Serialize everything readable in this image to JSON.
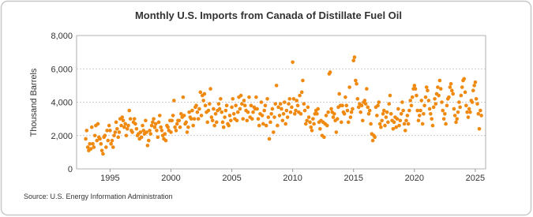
{
  "chart_data": {
    "type": "scatter",
    "title": "Monthly U.S. Imports from Canada of Distillate Fuel Oil",
    "y_label": "Thousand Barrels",
    "source": "Source: U.S. Energy Information Administration",
    "color": "#f0890f",
    "grid": true,
    "xlim": [
      1992.25,
      2025.85
    ],
    "xticks": [
      1995,
      2000,
      2005,
      2010,
      2015,
      2020,
      2025
    ],
    "ylim": [
      0,
      8000
    ],
    "yticks": [
      0,
      {
        "value": 2000,
        "label": "2,000"
      },
      {
        "value": 4000,
        "label": "4,000"
      },
      {
        "value": 6000,
        "label": "6,000"
      },
      {
        "value": 8000,
        "label": "8,000"
      }
    ],
    "x": [
      1993.0,
      1993.08,
      1993.17,
      1993.25,
      1993.33,
      1993.42,
      1993.5,
      1993.58,
      1993.67,
      1993.75,
      1993.83,
      1993.92,
      1994.0,
      1994.08,
      1994.17,
      1994.25,
      1994.33,
      1994.42,
      1994.5,
      1994.58,
      1994.67,
      1994.75,
      1994.83,
      1994.92,
      1995.0,
      1995.08,
      1995.17,
      1995.25,
      1995.33,
      1995.42,
      1995.5,
      1995.58,
      1995.67,
      1995.75,
      1995.83,
      1995.92,
      1996.0,
      1996.08,
      1996.17,
      1996.25,
      1996.33,
      1996.42,
      1996.5,
      1996.58,
      1996.67,
      1996.75,
      1996.83,
      1996.92,
      1997.0,
      1997.08,
      1997.17,
      1997.25,
      1997.33,
      1997.42,
      1997.5,
      1997.58,
      1997.67,
      1997.75,
      1997.83,
      1997.92,
      1998.0,
      1998.08,
      1998.17,
      1998.25,
      1998.33,
      1998.42,
      1998.5,
      1998.58,
      1998.67,
      1998.75,
      1998.83,
      1998.92,
      1999.0,
      1999.08,
      1999.17,
      1999.25,
      1999.33,
      1999.42,
      1999.5,
      1999.58,
      1999.67,
      1999.75,
      1999.83,
      1999.92,
      2000.0,
      2000.08,
      2000.17,
      2000.25,
      2000.33,
      2000.42,
      2000.5,
      2000.58,
      2000.67,
      2000.75,
      2000.83,
      2000.92,
      2001.0,
      2001.08,
      2001.17,
      2001.25,
      2001.33,
      2001.42,
      2001.5,
      2001.58,
      2001.67,
      2001.75,
      2001.83,
      2001.92,
      2002.0,
      2002.08,
      2002.17,
      2002.25,
      2002.33,
      2002.42,
      2002.5,
      2002.58,
      2002.67,
      2002.75,
      2002.83,
      2002.92,
      2003.0,
      2003.08,
      2003.17,
      2003.25,
      2003.33,
      2003.42,
      2003.5,
      2003.58,
      2003.67,
      2003.75,
      2003.83,
      2003.92,
      2004.0,
      2004.08,
      2004.17,
      2004.25,
      2004.33,
      2004.42,
      2004.5,
      2004.58,
      2004.67,
      2004.75,
      2004.83,
      2004.92,
      2005.0,
      2005.08,
      2005.17,
      2005.25,
      2005.33,
      2005.42,
      2005.5,
      2005.58,
      2005.67,
      2005.75,
      2005.83,
      2005.92,
      2006.0,
      2006.08,
      2006.17,
      2006.25,
      2006.33,
      2006.42,
      2006.5,
      2006.58,
      2006.67,
      2006.75,
      2006.83,
      2006.92,
      2007.0,
      2007.08,
      2007.17,
      2007.25,
      2007.33,
      2007.42,
      2007.5,
      2007.58,
      2007.67,
      2007.75,
      2007.83,
      2007.92,
      2008.0,
      2008.08,
      2008.17,
      2008.25,
      2008.33,
      2008.42,
      2008.5,
      2008.58,
      2008.67,
      2008.75,
      2008.83,
      2008.92,
      2009.0,
      2009.08,
      2009.17,
      2009.25,
      2009.33,
      2009.42,
      2009.5,
      2009.58,
      2009.67,
      2009.75,
      2009.83,
      2009.92,
      2010.0,
      2010.08,
      2010.17,
      2010.25,
      2010.33,
      2010.42,
      2010.5,
      2010.58,
      2010.67,
      2010.75,
      2010.83,
      2010.92,
      2011.0,
      2011.08,
      2011.17,
      2011.25,
      2011.33,
      2011.42,
      2011.5,
      2011.58,
      2011.67,
      2011.75,
      2011.83,
      2011.92,
      2012.0,
      2012.08,
      2012.17,
      2012.25,
      2012.33,
      2012.42,
      2012.5,
      2012.58,
      2012.67,
      2012.75,
      2012.83,
      2012.92,
      2013.0,
      2013.08,
      2013.17,
      2013.25,
      2013.33,
      2013.42,
      2013.5,
      2013.58,
      2013.67,
      2013.75,
      2013.83,
      2013.92,
      2014.0,
      2014.08,
      2014.17,
      2014.25,
      2014.33,
      2014.42,
      2014.5,
      2014.58,
      2014.67,
      2014.75,
      2014.83,
      2014.92,
      2015.0,
      2015.08,
      2015.17,
      2015.25,
      2015.33,
      2015.42,
      2015.5,
      2015.58,
      2015.67,
      2015.75,
      2015.83,
      2015.92,
      2016.0,
      2016.08,
      2016.17,
      2016.25,
      2016.33,
      2016.42,
      2016.5,
      2016.58,
      2016.67,
      2016.75,
      2016.83,
      2016.92,
      2017.0,
      2017.08,
      2017.17,
      2017.25,
      2017.33,
      2017.42,
      2017.5,
      2017.58,
      2017.67,
      2017.75,
      2017.83,
      2017.92,
      2018.0,
      2018.08,
      2018.17,
      2018.25,
      2018.33,
      2018.42,
      2018.5,
      2018.58,
      2018.67,
      2018.75,
      2018.83,
      2018.92,
      2019.0,
      2019.08,
      2019.17,
      2019.25,
      2019.33,
      2019.42,
      2019.5,
      2019.58,
      2019.67,
      2019.75,
      2019.83,
      2019.92,
      2020.0,
      2020.08,
      2020.17,
      2020.25,
      2020.33,
      2020.42,
      2020.5,
      2020.58,
      2020.67,
      2020.75,
      2020.83,
      2020.92,
      2021.0,
      2021.08,
      2021.17,
      2021.25,
      2021.33,
      2021.42,
      2021.5,
      2021.58,
      2021.67,
      2021.75,
      2021.83,
      2021.92,
      2022.0,
      2022.08,
      2022.17,
      2022.25,
      2022.33,
      2022.42,
      2022.5,
      2022.58,
      2022.67,
      2022.75,
      2022.83,
      2022.92,
      2023.0,
      2023.08,
      2023.17,
      2023.25,
      2023.33,
      2023.42,
      2023.5,
      2023.58,
      2023.67,
      2023.75,
      2023.83,
      2023.92,
      2024.0,
      2024.08,
      2024.17,
      2024.25,
      2024.33,
      2024.42,
      2024.5,
      2024.58,
      2024.67,
      2024.75,
      2024.83,
      2024.92,
      2025.0,
      2025.08,
      2025.17,
      2025.25,
      2025.33,
      2025.42,
      2025.5
    ],
    "values": [
      1800,
      2300,
      1300,
      1100,
      1500,
      1200,
      2500,
      1500,
      1300,
      2000,
      2600,
      1700,
      2700,
      1900,
      1800,
      1500,
      1100,
      900,
      1900,
      2000,
      1300,
      2300,
      1700,
      2600,
      2300,
      1500,
      1700,
      1300,
      2000,
      2200,
      2800,
      2400,
      1900,
      2200,
      3000,
      2600,
      3100,
      2900,
      2500,
      2700,
      2000,
      2400,
      2600,
      3500,
      3000,
      2300,
      2200,
      2800,
      3000,
      2700,
      2400,
      2000,
      2100,
      1800,
      2200,
      1900,
      2600,
      2300,
      2100,
      2900,
      2200,
      1400,
      1700,
      2300,
      2100,
      2600,
      2800,
      3000,
      2500,
      2700,
      2300,
      1900,
      2800,
      3200,
      2500,
      2300,
      2000,
      1800,
      2100,
      1700,
      2600,
      2500,
      2300,
      2900,
      2200,
      2900,
      3200,
      4100,
      2500,
      2300,
      2700,
      2900,
      2900,
      2500,
      3300,
      3100,
      4300,
      3200,
      2700,
      2800,
      2200,
      2500,
      3400,
      3100,
      3000,
      3500,
      2600,
      3000,
      3700,
      3800,
      3400,
      3000,
      3600,
      4600,
      3200,
      4400,
      4100,
      4500,
      3800,
      3400,
      2800,
      3500,
      3900,
      4800,
      3100,
      2900,
      3600,
      2600,
      3300,
      2800,
      3500,
      3900,
      3600,
      4200,
      3400,
      2800,
      2500,
      3100,
      3500,
      3800,
      2700,
      2600,
      3200,
      2900,
      3700,
      4200,
      3300,
      3000,
      3800,
      2900,
      3400,
      4300,
      3600,
      4400,
      3900,
      3000,
      4100,
      3800,
      3500,
      2900,
      3400,
      4300,
      3100,
      3800,
      3000,
      3400,
      3700,
      3600,
      4300,
      3600,
      3000,
      2600,
      3300,
      4000,
      3200,
      2700,
      3500,
      3800,
      2600,
      4200,
      3100,
      1800,
      2800,
      3300,
      3600,
      2200,
      3100,
      3900,
      5000,
      2600,
      3700,
      3200,
      3900,
      3600,
      2900,
      3300,
      4000,
      2700,
      3500,
      3100,
      3900,
      4200,
      3400,
      3700,
      6400,
      4200,
      3300,
      3500,
      4100,
      3800,
      3400,
      4400,
      3300,
      4600,
      5300,
      3900,
      3500,
      2700,
      2900,
      3700,
      3100,
      2800,
      2500,
      2300,
      3000,
      2700,
      3300,
      3500,
      3300,
      3600,
      2800,
      2400,
      2900,
      2000,
      2800,
      1900,
      2700,
      3200,
      2600,
      3400,
      5700,
      5800,
      3600,
      3400,
      3100,
      3300,
      2900,
      2200,
      3000,
      3700,
      4500,
      3800,
      2800,
      3800,
      3400,
      3300,
      4300,
      3800,
      3500,
      2800,
      4900,
      3100,
      3400,
      3600,
      6500,
      6700,
      5300,
      5100,
      4200,
      3700,
      3900,
      3400,
      3800,
      2900,
      4000,
      4100,
      3900,
      4800,
      3700,
      3300,
      3500,
      2700,
      2100,
      1700,
      2000,
      1900,
      3700,
      3200,
      3800,
      4000,
      2700,
      2500,
      2900,
      3300,
      3500,
      2600,
      3100,
      3400,
      2800,
      3900,
      4400,
      3300,
      2900,
      2400,
      2800,
      3100,
      2500,
      3000,
      3600,
      2600,
      2900,
      3300,
      4000,
      3500,
      2700,
      2300,
      2900,
      3200,
      2700,
      3500,
      4100,
      3800,
      4300,
      4800,
      5000,
      4800,
      4400,
      3500,
      2900,
      3200,
      3500,
      4100,
      2700,
      3300,
      3800,
      4300,
      4900,
      4700,
      4100,
      3600,
      3300,
      3000,
      2600,
      3700,
      4200,
      3900,
      4500,
      4900,
      4400,
      5300,
      4800,
      4000,
      3500,
      3000,
      3300,
      2700,
      3800,
      4200,
      4300,
      4900,
      5100,
      4700,
      4500,
      3600,
      3200,
      2800,
      3000,
      3400,
      4000,
      3700,
      4400,
      4900,
      5300,
      5400,
      4600,
      3800,
      3400,
      3100,
      3600,
      3400,
      4100,
      4000,
      4700,
      5000,
      5200,
      4200,
      3900,
      3300,
      2400,
      3500,
      3200
    ]
  }
}
